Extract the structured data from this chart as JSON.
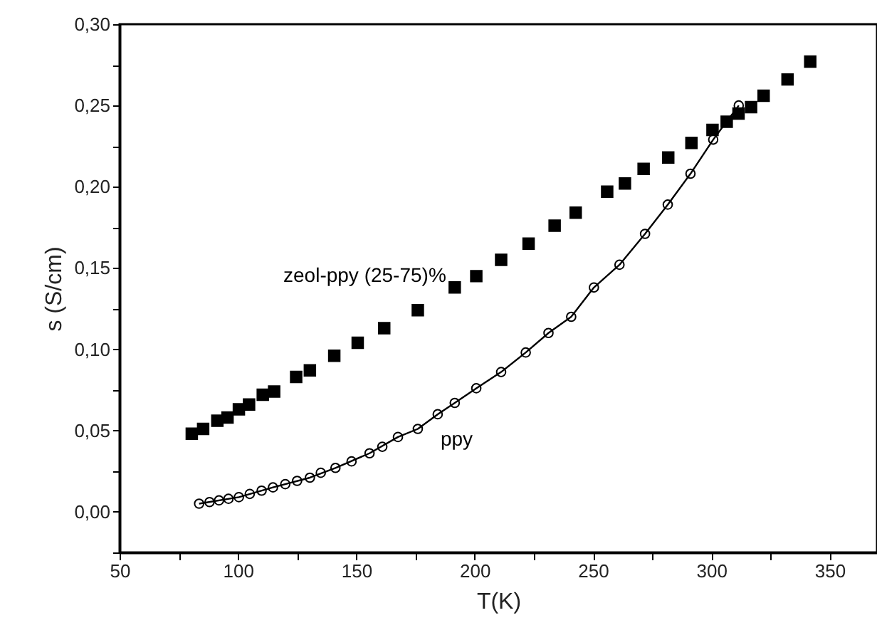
{
  "chart_data": {
    "type": "scatter",
    "xlabel": "T(K)",
    "ylabel": "s (S/cm)",
    "xlim": [
      50,
      370
    ],
    "ylim": [
      -0.025,
      0.3
    ],
    "xticks": [
      50,
      {
        "value": 75,
        "label": null
      },
      100,
      {
        "value": 125,
        "label": null
      },
      150,
      {
        "value": 175,
        "label": null
      },
      200,
      {
        "value": 225,
        "label": null
      },
      250,
      {
        "value": 275,
        "label": null
      },
      300,
      {
        "value": 325,
        "label": null
      },
      350
    ],
    "yticks": [
      {
        "value": -0.025,
        "label": null
      },
      {
        "value": 0,
        "label": "0,00"
      },
      {
        "value": 0.025,
        "label": null
      },
      {
        "value": 0.05,
        "label": "0,05"
      },
      {
        "value": 0.075,
        "label": null
      },
      {
        "value": 0.1,
        "label": "0,10"
      },
      {
        "value": 0.125,
        "label": null
      },
      {
        "value": 0.15,
        "label": "0,15"
      },
      {
        "value": 0.175,
        "label": null
      },
      {
        "value": 0.2,
        "label": "0,20"
      },
      {
        "value": 0.225,
        "label": null
      },
      {
        "value": 0.25,
        "label": "0,25"
      },
      {
        "value": 0.275,
        "label": null
      },
      {
        "value": 0.3,
        "label": "0,30"
      }
    ],
    "grid": false,
    "legend": false,
    "series": [
      {
        "name": "zeol-ppy (25-75)%",
        "marker": "square",
        "color": "#000000",
        "x": [
          80.5,
          85.3,
          91.3,
          95.6,
          100.4,
          104.7,
          110.5,
          115.3,
          124.6,
          130.4,
          140.7,
          150.6,
          161.8,
          176,
          191.6,
          200.7,
          211.2,
          222.8,
          233.8,
          242.7,
          256,
          263.5,
          271.4,
          281.8,
          291.6,
          300.5,
          306.5,
          311.5,
          316.8,
          322.1,
          332.2,
          341.8
        ],
        "values": [
          0.048,
          0.051,
          0.056,
          0.058,
          0.063,
          0.066,
          0.072,
          0.074,
          0.083,
          0.087,
          0.096,
          0.104,
          0.113,
          0.124,
          0.138,
          0.145,
          0.155,
          0.165,
          0.176,
          0.184,
          0.197,
          0.202,
          0.211,
          0.218,
          0.227,
          0.235,
          0.24,
          0.245,
          0.249,
          0.256,
          0.266,
          0.277
        ]
      },
      {
        "name": "ppy",
        "marker": "circle",
        "color": "#000000",
        "x": [
          83.6,
          88,
          92,
          96,
          100.4,
          105,
          110,
          114.8,
          120,
          125,
          130.4,
          135,
          141.2,
          148,
          155.6,
          161,
          167.6,
          176,
          184.4,
          191.6,
          200.7,
          211.2,
          221.6,
          231.2,
          240.8,
          250.4,
          261.2,
          272,
          281.6,
          291.2,
          300.8,
          311.6
        ],
        "values": [
          0.005,
          0.006,
          0.007,
          0.008,
          0.009,
          0.011,
          0.013,
          0.015,
          0.017,
          0.019,
          0.021,
          0.024,
          0.027,
          0.031,
          0.036,
          0.04,
          0.046,
          0.051,
          0.06,
          0.067,
          0.076,
          0.086,
          0.098,
          0.11,
          0.12,
          0.138,
          0.152,
          0.171,
          0.189,
          0.208,
          0.229,
          0.25
        ]
      },
      {
        "type": "line",
        "marker": "none",
        "color": "#000000",
        "x": [
          83.6,
          100.4,
          114.8,
          130.4,
          141.2,
          155.6,
          167.6,
          176,
          184.4,
          191.6,
          200.7,
          211.2,
          221.6,
          231.2,
          240.8,
          250.4,
          261.2,
          272,
          281.6,
          291.2,
          300.8,
          311.6
        ],
        "values": [
          0.005,
          0.009,
          0.015,
          0.021,
          0.027,
          0.036,
          0.046,
          0.051,
          0.06,
          0.067,
          0.076,
          0.086,
          0.098,
          0.11,
          0.12,
          0.138,
          0.152,
          0.171,
          0.189,
          0.208,
          0.229,
          0.25
        ]
      }
    ]
  }
}
